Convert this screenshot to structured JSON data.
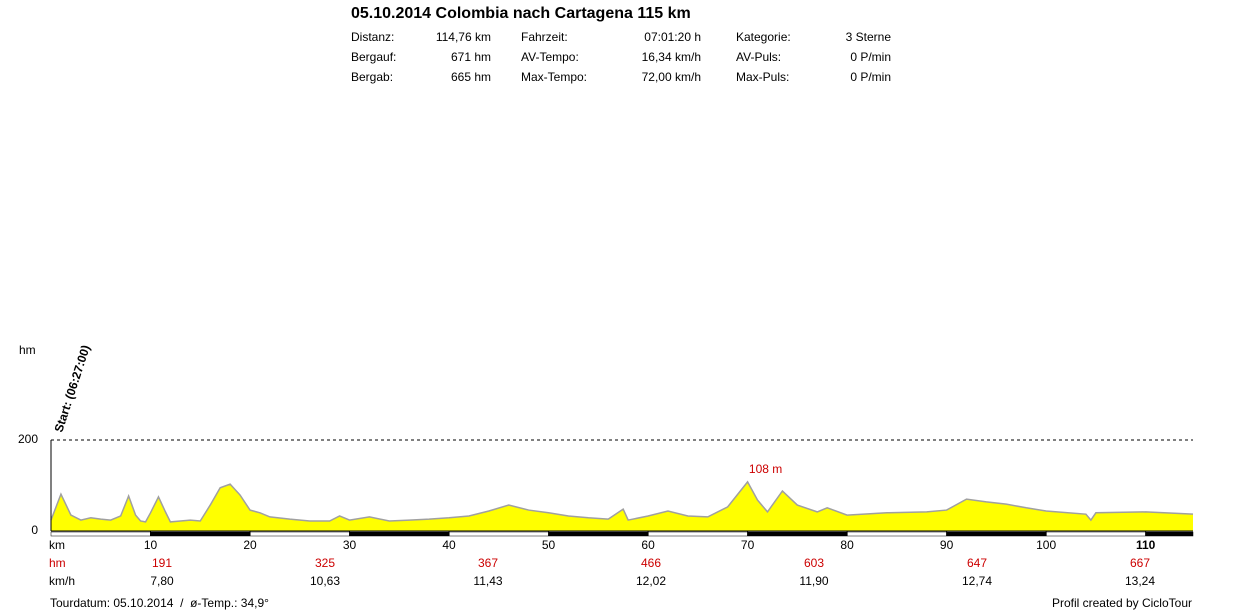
{
  "header": {
    "title": "05.10.2014 Colombia nach Cartagena 115 km",
    "stats": [
      [
        "Distanz:",
        "114,76 km",
        "Fahrzeit:",
        "07:01:20 h",
        "Kategorie:",
        "3 Sterne"
      ],
      [
        "Bergauf:",
        "671 hm",
        "AV-Tempo:",
        "16,34 km/h",
        "AV-Puls:",
        "0 P/min"
      ],
      [
        "Bergab:",
        "665 hm",
        "Max-Tempo:",
        "72,00 km/h",
        "Max-Puls:",
        "0 P/min"
      ]
    ]
  },
  "chart_data": {
    "type": "area",
    "x_label": "km",
    "y_label": "hm",
    "start_label": "Start: (06:27:00)",
    "x": [
      0,
      1,
      2,
      3,
      4,
      5,
      6,
      7,
      7.8,
      8.5,
      9,
      9.5,
      10,
      10.8,
      11.5,
      12,
      13,
      14,
      15,
      16,
      17,
      18,
      19,
      20,
      21,
      22,
      24,
      26,
      28,
      29,
      30,
      32,
      34,
      36,
      38,
      40,
      42,
      44,
      46,
      48,
      50,
      52,
      54,
      56,
      57.5,
      58,
      60,
      62,
      64,
      66,
      68,
      70,
      71,
      72,
      73.5,
      75,
      77,
      78,
      80,
      84,
      88,
      90,
      92,
      94,
      96,
      98,
      100,
      104,
      104.5,
      105,
      110,
      114.76
    ],
    "values": [
      24,
      81,
      35,
      24,
      29,
      26,
      24,
      33,
      77,
      35,
      22,
      20,
      40,
      75,
      42,
      20,
      22,
      24,
      22,
      57,
      95,
      103,
      79,
      46,
      40,
      31,
      26,
      22,
      22,
      33,
      24,
      31,
      22,
      24,
      26,
      29,
      33,
      44,
      57,
      46,
      40,
      33,
      29,
      26,
      48,
      24,
      33,
      44,
      33,
      31,
      53,
      108,
      68,
      42,
      88,
      57,
      42,
      51,
      35,
      40,
      42,
      46,
      70,
      64,
      59,
      51,
      44,
      37,
      24,
      40,
      42,
      37
    ],
    "color": "#ffff00",
    "line_color": "#a0a0a0",
    "xlim": [
      0,
      114.76
    ],
    "ylim": [
      0,
      200
    ],
    "xticks": [
      10,
      20,
      30,
      40,
      50,
      60,
      70,
      80,
      90,
      100,
      110
    ],
    "yticks": [
      0,
      200
    ],
    "annotations": [
      {
        "text": "108 m",
        "x": 70,
        "y": 108
      }
    ]
  },
  "rows": [
    {
      "label": "hm",
      "values": [
        "191",
        "325",
        "367",
        "466",
        "603",
        "647",
        "667"
      ]
    },
    {
      "label": "km/h",
      "values": [
        "7,80",
        "10,63",
        "11,43",
        "12,02",
        "11,90",
        "12,74",
        "13,24"
      ]
    }
  ],
  "footer": {
    "left": "Tourdatum: 05.10.2014  /  ø-Temp.: 34,9°",
    "right": "Profil created by CicloTour"
  }
}
